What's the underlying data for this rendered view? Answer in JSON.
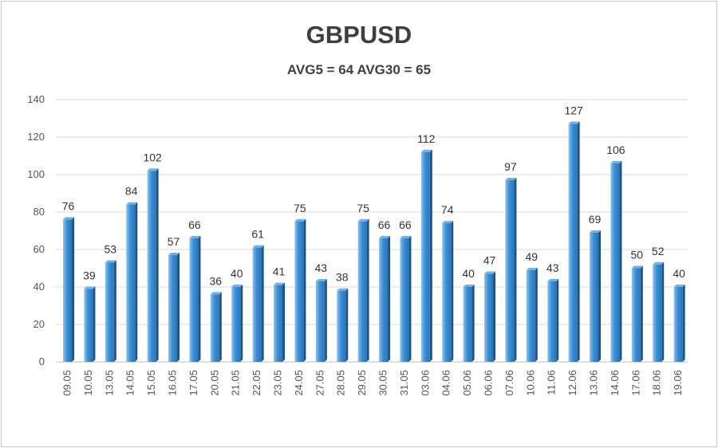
{
  "chart_data": {
    "type": "bar",
    "title": "GBPUSD",
    "subtitle": "AVG5 = 64 AVG30 = 65",
    "xlabel": "",
    "ylabel": "",
    "ylim": [
      0,
      140
    ],
    "yticks": [
      0,
      20,
      40,
      60,
      80,
      100,
      120,
      140
    ],
    "grid": true,
    "legend": "none",
    "bar_color": "#3c8fd3",
    "bar_highlight": "#8cc5f2",
    "bar_shadow": "#1f5e96",
    "categories": [
      "09.05",
      "10.05",
      "13.05",
      "14.05",
      "15.05",
      "16.05",
      "17.05",
      "20.05",
      "21.05",
      "22.05",
      "23.05",
      "24.05",
      "27.05",
      "28.05",
      "29.05",
      "30.05",
      "31.05",
      "03.06",
      "04.06",
      "05.06",
      "06.06",
      "07.06",
      "10.06",
      "11.06",
      "12.06",
      "13.06",
      "14.06",
      "17.06",
      "18.06",
      "19.06"
    ],
    "values": [
      76,
      39,
      53,
      84,
      102,
      57,
      66,
      36,
      40,
      61,
      41,
      75,
      43,
      38,
      75,
      66,
      66,
      112,
      74,
      40,
      47,
      97,
      49,
      43,
      127,
      69,
      106,
      50,
      52,
      40
    ]
  }
}
